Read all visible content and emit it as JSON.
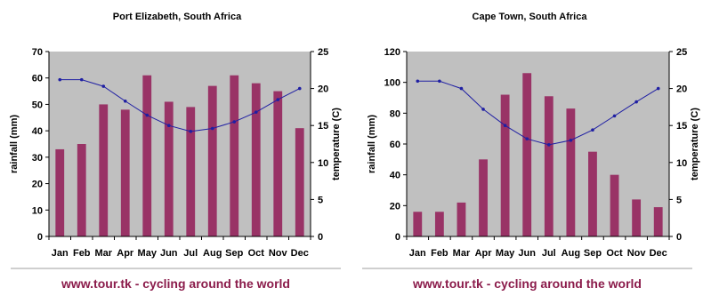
{
  "colors": {
    "plot_bg": "#c0c0c0",
    "bar": "#993366",
    "line": "#1f1fa3",
    "footer": "#8b1c4b"
  },
  "chart_data": [
    {
      "type": "bar",
      "title": "Port Elizabeth, South Africa",
      "categories": [
        "Jan",
        "Feb",
        "Mar",
        "Apr",
        "May",
        "Jun",
        "Jul",
        "Aug",
        "Sep",
        "Oct",
        "Nov",
        "Dec"
      ],
      "ylabel": "rainfall (mm)",
      "y2label": "temperature (C)",
      "ylim": [
        0,
        70
      ],
      "yticks": [
        "0",
        "10",
        "20",
        "30",
        "40",
        "50",
        "60",
        "70"
      ],
      "y2lim": [
        0,
        25
      ],
      "y2ticks": [
        "0",
        "5",
        "10",
        "15",
        "20",
        "25"
      ],
      "grid": false,
      "series": [
        {
          "type": "bar",
          "axis": "left",
          "values": [
            33,
            35,
            50,
            48,
            61,
            51,
            49,
            57,
            61,
            58,
            55,
            41
          ]
        },
        {
          "type": "line",
          "axis": "right",
          "values": [
            21.2,
            21.2,
            20.3,
            18.3,
            16.4,
            15.0,
            14.2,
            14.6,
            15.5,
            16.8,
            18.5,
            20.0
          ]
        }
      ]
    },
    {
      "type": "bar",
      "title": "Cape Town, South Africa",
      "categories": [
        "Jan",
        "Feb",
        "Mar",
        "Apr",
        "May",
        "Jun",
        "Jul",
        "Aug",
        "Sep",
        "Oct",
        "Nov",
        "Dec"
      ],
      "ylabel": "rainfall (mm)",
      "y2label": "temperature (C)",
      "ylim": [
        0,
        120
      ],
      "yticks": [
        "0",
        "20",
        "40",
        "60",
        "80",
        "100",
        "120"
      ],
      "y2lim": [
        0,
        25
      ],
      "y2ticks": [
        "0",
        "5",
        "10",
        "15",
        "20",
        "25"
      ],
      "grid": false,
      "series": [
        {
          "type": "bar",
          "axis": "left",
          "values": [
            16,
            16,
            22,
            50,
            92,
            106,
            91,
            83,
            55,
            40,
            24,
            19
          ]
        },
        {
          "type": "line",
          "axis": "right",
          "values": [
            21.0,
            21.0,
            20.0,
            17.2,
            15.0,
            13.2,
            12.4,
            13.0,
            14.4,
            16.3,
            18.2,
            20.0
          ]
        }
      ]
    }
  ],
  "footer_text": "www.tour.tk - cycling around the world"
}
